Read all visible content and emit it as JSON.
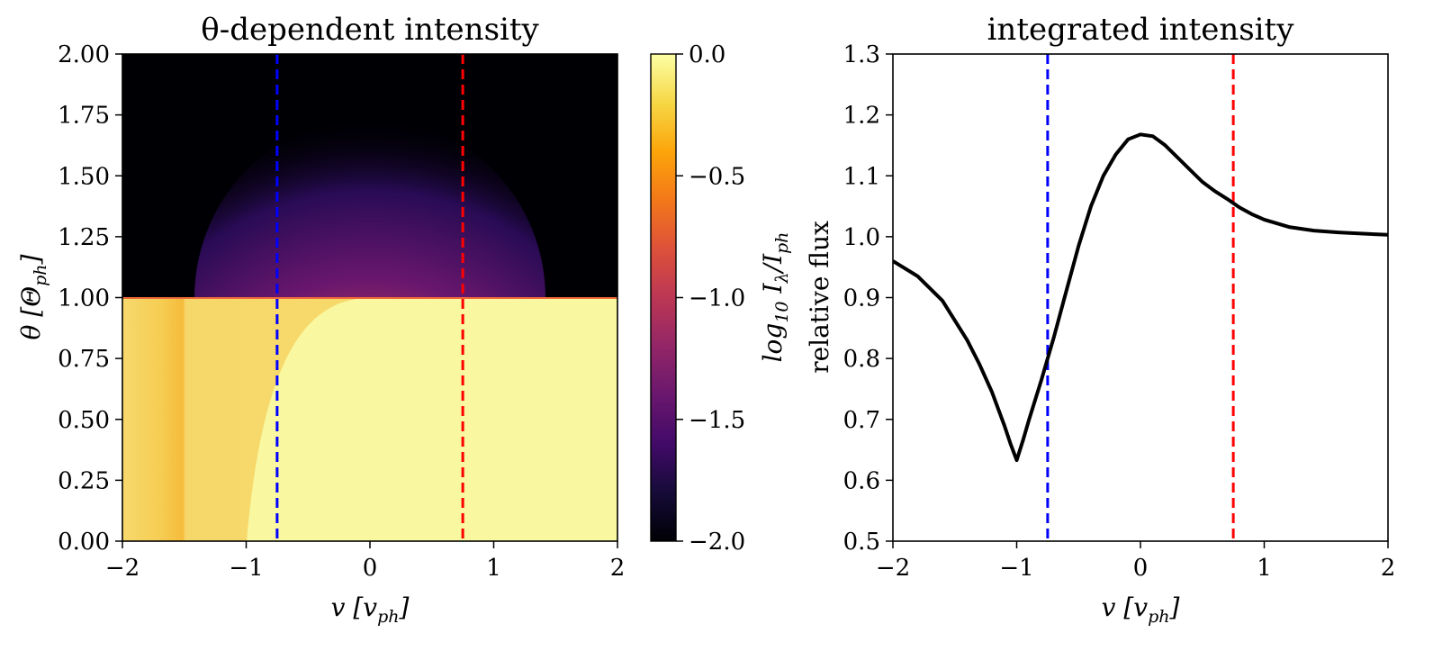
{
  "colors": {
    "blue_line": "#0000ff",
    "red_line": "#ff0000",
    "curve": "#000000",
    "colormap": "inferno"
  },
  "chart_data": [
    {
      "type": "heatmap",
      "title": "θ-dependent intensity",
      "xlabel": "v [v",
      "xlabel_sub": "ph",
      "xlabel_close": "]",
      "ylabel": "θ [Θ",
      "ylabel_sub": "ph",
      "ylabel_close": "]",
      "xlim": [
        -2,
        2
      ],
      "ylim": [
        0,
        2
      ],
      "xticks": [
        "−2",
        "−1",
        "0",
        "1",
        "2"
      ],
      "xtick_values": [
        -2,
        -1,
        0,
        1,
        2
      ],
      "yticks": [
        "0.00",
        "0.25",
        "0.50",
        "0.75",
        "1.00",
        "1.25",
        "1.50",
        "1.75",
        "2.00"
      ],
      "ytick_values": [
        0,
        0.25,
        0.5,
        0.75,
        1.0,
        1.25,
        1.5,
        1.75,
        2.0
      ],
      "vlines": [
        {
          "x": -0.75,
          "color": "#0000ff",
          "style": "dashed"
        },
        {
          "x": 0.75,
          "color": "#ff0000",
          "style": "dashed"
        }
      ],
      "colorbar": {
        "label": "log",
        "label_sub1": "10",
        "label_mid": " I",
        "label_sub2": "λ",
        "label_slash": "/I",
        "label_sub3": "ph",
        "range": [
          -2.0,
          0.0
        ],
        "ticks": [
          "0.0",
          "−0.5",
          "−1.0",
          "−1.5",
          "−2.0"
        ],
        "tick_values": [
          0.0,
          -0.5,
          -1.0,
          -1.5,
          -2.0
        ]
      }
    },
    {
      "type": "line",
      "title": "integrated intensity",
      "xlabel": "v [v",
      "xlabel_sub": "ph",
      "xlabel_close": "]",
      "ylabel": "relative flux",
      "xlim": [
        -2,
        2
      ],
      "ylim": [
        0.5,
        1.3
      ],
      "xticks": [
        "−2",
        "−1",
        "0",
        "1",
        "2"
      ],
      "xtick_values": [
        -2,
        -1,
        0,
        1,
        2
      ],
      "yticks": [
        "0.5",
        "0.6",
        "0.7",
        "0.8",
        "0.9",
        "1.0",
        "1.1",
        "1.2",
        "1.3"
      ],
      "ytick_values": [
        0.5,
        0.6,
        0.7,
        0.8,
        0.9,
        1.0,
        1.1,
        1.2,
        1.3
      ],
      "series": [
        {
          "x": [
            -2.0,
            -1.8,
            -1.6,
            -1.4,
            -1.3,
            -1.2,
            -1.1,
            -1.05,
            -1.0,
            -0.95,
            -0.9,
            -0.8,
            -0.75,
            -0.7,
            -0.6,
            -0.5,
            -0.4,
            -0.3,
            -0.2,
            -0.1,
            0.0,
            0.1,
            0.2,
            0.3,
            0.4,
            0.5,
            0.6,
            0.7,
            0.8,
            0.9,
            1.0,
            1.2,
            1.4,
            1.6,
            1.8,
            2.0
          ],
          "y": [
            0.96,
            0.935,
            0.895,
            0.83,
            0.79,
            0.745,
            0.69,
            0.66,
            0.633,
            0.665,
            0.7,
            0.765,
            0.8,
            0.835,
            0.91,
            0.985,
            1.05,
            1.1,
            1.135,
            1.16,
            1.168,
            1.165,
            1.15,
            1.13,
            1.11,
            1.09,
            1.075,
            1.062,
            1.048,
            1.037,
            1.028,
            1.016,
            1.01,
            1.007,
            1.005,
            1.003
          ]
        }
      ],
      "vlines": [
        {
          "x": -0.75,
          "color": "#0000ff",
          "style": "dashed"
        },
        {
          "x": 0.75,
          "color": "#ff0000",
          "style": "dashed"
        }
      ]
    }
  ]
}
